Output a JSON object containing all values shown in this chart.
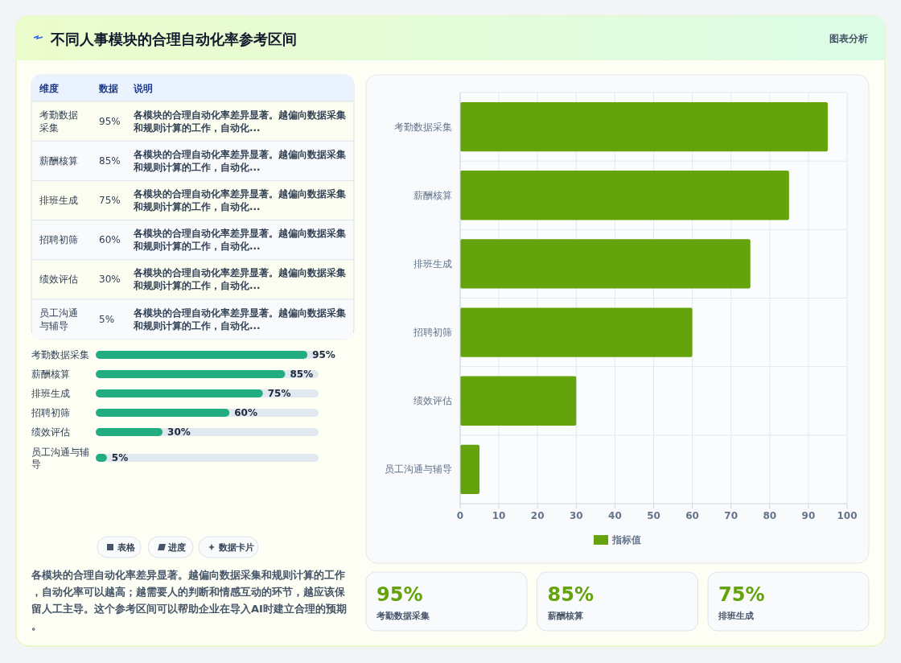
{
  "chart_data": [
    {
      "type": "bar",
      "subtitle": "图表分析",
      "orientation": "horizontal",
      "categories": [
        "考勤数据采集",
        "薪酬核算",
        "排班生成",
        "招聘初筛",
        "绩效评估",
        "员工沟通与辅导"
      ],
      "series": [
        {
          "name": "指标值",
          "color": "#65a30d",
          "values": [
            95,
            85,
            75,
            60,
            30,
            5
          ]
        }
      ],
      "xlim": [
        0,
        100
      ],
      "xticks": [
        0,
        10,
        20,
        30,
        40,
        50,
        60,
        70,
        80,
        90,
        100
      ],
      "grid": true,
      "legend": "bottom"
    },
    {
      "type": "other",
      "title": "不同人事模块的合理自动化率参考区间",
      "categories": [
        "考勤数据采集",
        "薪酬核算",
        "排班生成",
        "招聘初筛",
        "绩效评估",
        "员工沟通与辅导"
      ],
      "value_labels": [
        "95%",
        "85%",
        "75%",
        "60%",
        "30%",
        "5%"
      ],
      "annotations": [
        "维度",
        "数据",
        "说明",
        "各模块的合理自动化率差异显著。越偏向数据采集和规则计算的工作，自动化...",
        "各模块的合理自动化率差异显著。越偏向数据采集和规则计算的工作，自动化...",
        "各模块的合理自动化率差异显著。越偏向数据采集和规则计算的工作，自动化...",
        "各模块的合理自动化率差异显著。越偏向数据采集和规则计算的工作，自动化...",
        "各模块的合理自动化率差异显著。越偏向数据采集和规则计算的工作，自动化...",
        "各模块的合理自动化率差异显著。越偏向数据采集和规则计算的工作，自动化..."
      ]
    },
    {
      "type": "bar",
      "orientation": "horizontal",
      "categories": [
        "考勤数据采集",
        "薪酬核算",
        "排班生成",
        "招聘初筛",
        "绩效评估",
        "员工沟通与辅导"
      ],
      "values": [
        95,
        85,
        75,
        60,
        30,
        5
      ],
      "value_labels": [
        "95%",
        "85%",
        "75%",
        "60%",
        "30%",
        "5%"
      ],
      "color": "#22ad80",
      "xlim": [
        0,
        100
      ],
      "tick_labels": "y",
      "annotations": [
        "表格",
        "进度",
        "数据卡片",
        "各模块的合理自动化率差异显著。越偏向数据采集和规则计算的工作，自动化率可以越高；越需要人的判断和情感互动的环节，越应该保留人工主导。这个参考区间可以帮助企业在导入AI时建立合理的预期。"
      ]
    },
    {
      "type": "other",
      "categories": [
        "考勤数据采集",
        "薪酬核算",
        "排班生成"
      ],
      "value_labels": [
        "95%",
        "85%",
        "75%"
      ]
    }
  ]
}
